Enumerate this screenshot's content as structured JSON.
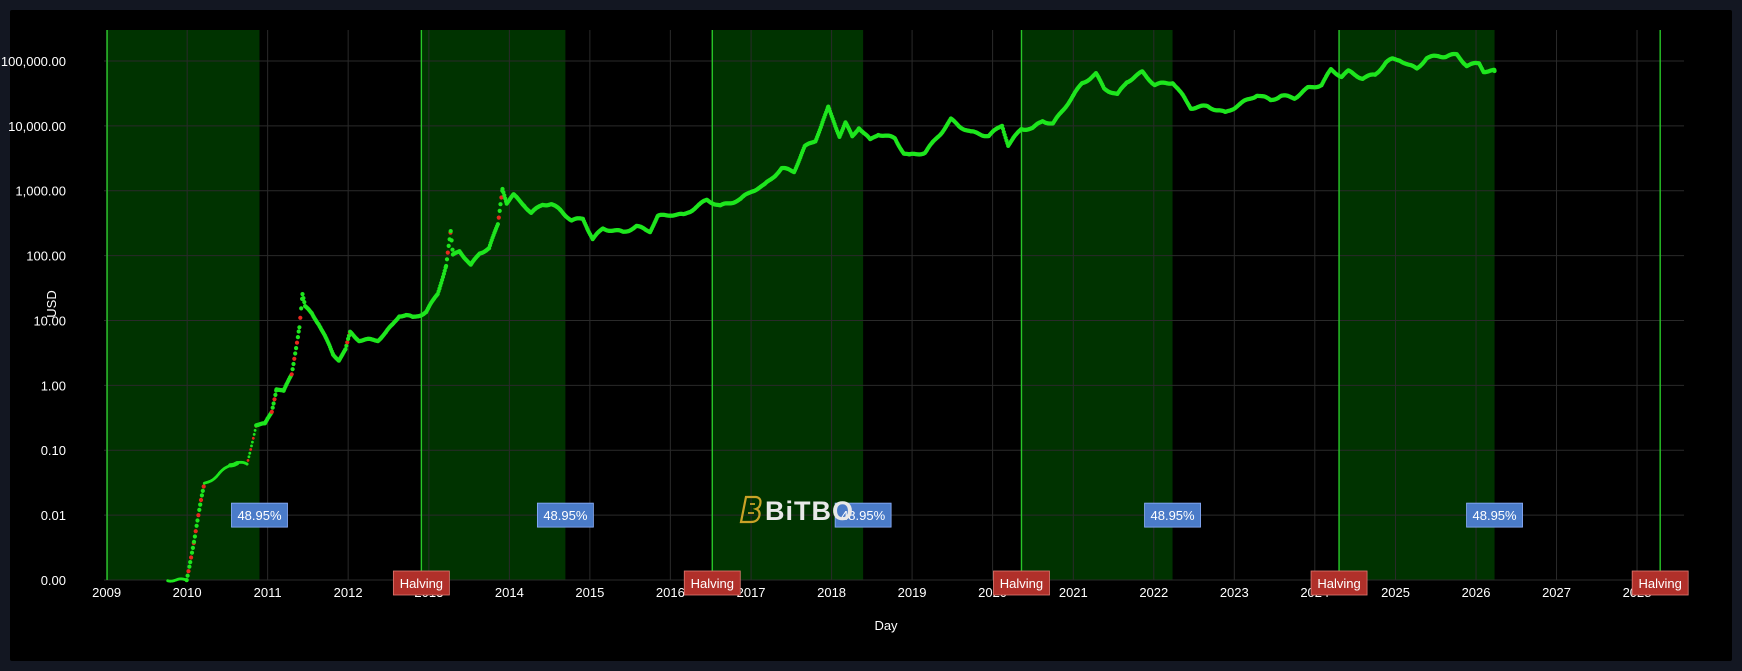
{
  "colors": {
    "background": "#000000",
    "frame": "#131722",
    "grid": "#2a2a2a",
    "band": "#003300",
    "band_edge": "#28c828",
    "up": "#1ee61e",
    "down": "#e6281e",
    "pct_box": "#4a7bc8",
    "halving_box": "#b0302a"
  },
  "logo": {
    "text": "BiTBO",
    "icon": "bitbo-b-icon"
  },
  "chart_data": {
    "type": "scatter",
    "xlabel": "Day",
    "ylabel": "USD",
    "y_scale": "log",
    "ylim": [
      0.001,
      300000
    ],
    "xlim": [
      "2008-12-20",
      "2028-08-01"
    ],
    "x_ticks": [
      "2009",
      "2010",
      "2011",
      "2012",
      "2013",
      "2014",
      "2015",
      "2016",
      "2017",
      "2018",
      "2019",
      "2020",
      "2021",
      "2022",
      "2023",
      "2024",
      "2025",
      "2026",
      "2027",
      "2028"
    ],
    "y_ticks": [
      {
        "value": 100000,
        "label": "100,000.00"
      },
      {
        "value": 10000,
        "label": "10,000.00"
      },
      {
        "value": 1000,
        "label": "1,000.00"
      },
      {
        "value": 100,
        "label": "100.00"
      },
      {
        "value": 10,
        "label": "10.00"
      },
      {
        "value": 1,
        "label": "1.00"
      },
      {
        "value": 0.1,
        "label": "0.10"
      },
      {
        "value": 0.01,
        "label": "0.01"
      },
      {
        "value": 0.001,
        "label": "0.00"
      }
    ],
    "shaded_periods": [
      {
        "start": "2009-01-03",
        "end": "2010-11-25",
        "label": "48.95%"
      },
      {
        "start": "2012-11-28",
        "end": "2014-09-12",
        "label": "48.95%"
      },
      {
        "start": "2016-07-09",
        "end": "2018-05-24",
        "label": "48.95%"
      },
      {
        "start": "2020-05-11",
        "end": "2022-03-27",
        "label": "48.95%"
      },
      {
        "start": "2024-04-20",
        "end": "2026-03-26",
        "label": "48.95%"
      }
    ],
    "halvings": [
      {
        "date": "2012-11-28",
        "label": "Halving"
      },
      {
        "date": "2016-07-09",
        "label": "Halving"
      },
      {
        "date": "2020-05-11",
        "label": "Halving"
      },
      {
        "date": "2024-04-20",
        "label": "Halving"
      },
      {
        "date": "2028-04-15",
        "label": "Halving"
      }
    ],
    "series": [
      {
        "color_rule": "green = normal, red = overheated",
        "points": [
          [
            "2009-10-05",
            0.001
          ],
          [
            "2009-12-30",
            0.001
          ],
          [
            "2010-02-01",
            0.004
          ],
          [
            "2010-03-01",
            0.014
          ],
          [
            "2010-03-20",
            0.03
          ],
          [
            "2010-05-15",
            0.04
          ],
          [
            "2010-07-15",
            0.06
          ],
          [
            "2010-08-20",
            0.065
          ],
          [
            "2010-09-30",
            0.06
          ],
          [
            "2010-11-10",
            0.25
          ],
          [
            "2010-12-20",
            0.25
          ],
          [
            "2011-01-20",
            0.4
          ],
          [
            "2011-02-10",
            0.9
          ],
          [
            "2011-03-15",
            0.8
          ],
          [
            "2011-04-20",
            1.5
          ],
          [
            "2011-05-25",
            8
          ],
          [
            "2011-06-08",
            25
          ],
          [
            "2011-06-20",
            16
          ],
          [
            "2011-07-20",
            13
          ],
          [
            "2011-08-20",
            9
          ],
          [
            "2011-09-25",
            5
          ],
          [
            "2011-10-25",
            3
          ],
          [
            "2011-11-20",
            2.5
          ],
          [
            "2011-12-20",
            3.5
          ],
          [
            "2012-01-10",
            6.5
          ],
          [
            "2012-02-20",
            5
          ],
          [
            "2012-04-01",
            5
          ],
          [
            "2012-05-15",
            5
          ],
          [
            "2012-06-20",
            6.5
          ],
          [
            "2012-07-20",
            8.5
          ],
          [
            "2012-08-20",
            12
          ],
          [
            "2012-09-20",
            12
          ],
          [
            "2012-10-20",
            11
          ],
          [
            "2012-12-20",
            13.5
          ],
          [
            "2013-02-10",
            26
          ],
          [
            "2013-03-20",
            70
          ],
          [
            "2013-04-10",
            230
          ],
          [
            "2013-04-20",
            100
          ],
          [
            "2013-05-20",
            120
          ],
          [
            "2013-07-10",
            70
          ],
          [
            "2013-08-20",
            110
          ],
          [
            "2013-10-01",
            130
          ],
          [
            "2013-11-10",
            300
          ],
          [
            "2013-12-01",
            1100
          ],
          [
            "2013-12-20",
            650
          ],
          [
            "2014-01-20",
            850
          ],
          [
            "2014-03-10",
            600
          ],
          [
            "2014-04-10",
            450
          ],
          [
            "2014-06-01",
            620
          ],
          [
            "2014-07-10",
            620
          ],
          [
            "2014-08-20",
            500
          ],
          [
            "2014-10-10",
            350
          ],
          [
            "2014-12-01",
            370
          ],
          [
            "2015-01-14",
            180
          ],
          [
            "2015-03-01",
            260
          ],
          [
            "2015-06-01",
            230
          ],
          [
            "2015-08-01",
            280
          ],
          [
            "2015-10-01",
            240
          ],
          [
            "2015-11-05",
            400
          ],
          [
            "2016-01-01",
            430
          ],
          [
            "2016-03-01",
            420
          ],
          [
            "2016-06-15",
            720
          ],
          [
            "2016-08-15",
            580
          ],
          [
            "2016-11-15",
            740
          ],
          [
            "2017-01-05",
            1000
          ],
          [
            "2017-03-01",
            1200
          ],
          [
            "2017-05-20",
            2200
          ],
          [
            "2017-07-15",
            2000
          ],
          [
            "2017-09-01",
            4700
          ],
          [
            "2017-10-20",
            6000
          ],
          [
            "2017-12-17",
            19000
          ],
          [
            "2018-02-06",
            7000
          ],
          [
            "2018-03-05",
            11000
          ],
          [
            "2018-04-05",
            6800
          ],
          [
            "2018-05-05",
            9500
          ],
          [
            "2018-06-25",
            6000
          ],
          [
            "2018-08-01",
            7500
          ],
          [
            "2018-10-15",
            6400
          ],
          [
            "2018-11-25",
            3800
          ],
          [
            "2018-12-20",
            3500
          ],
          [
            "2019-03-01",
            3900
          ],
          [
            "2019-05-15",
            8000
          ],
          [
            "2019-06-26",
            12500
          ],
          [
            "2019-08-01",
            10000
          ],
          [
            "2019-09-25",
            8000
          ],
          [
            "2019-12-15",
            7000
          ],
          [
            "2020-02-13",
            10300
          ],
          [
            "2020-03-12",
            5000
          ],
          [
            "2020-05-10",
            9000
          ],
          [
            "2020-07-01",
            9100
          ],
          [
            "2020-08-15",
            12000
          ],
          [
            "2020-10-01",
            10700
          ],
          [
            "2020-11-20",
            18500
          ],
          [
            "2020-12-31",
            29000
          ],
          [
            "2021-02-10",
            45000
          ],
          [
            "2021-04-14",
            63000
          ],
          [
            "2021-05-20",
            38000
          ],
          [
            "2021-07-20",
            30000
          ],
          [
            "2021-09-01",
            48000
          ],
          [
            "2021-11-10",
            67000
          ],
          [
            "2022-01-05",
            43000
          ],
          [
            "2022-03-28",
            47000
          ],
          [
            "2022-05-12",
            29000
          ],
          [
            "2022-06-18",
            19000
          ],
          [
            "2022-09-01",
            20000
          ],
          [
            "2022-11-21",
            15800
          ],
          [
            "2023-01-20",
            21000
          ],
          [
            "2023-04-14",
            30000
          ],
          [
            "2023-06-15",
            25000
          ],
          [
            "2023-08-01",
            29000
          ],
          [
            "2023-10-01",
            27000
          ],
          [
            "2023-12-01",
            38000
          ],
          [
            "2024-02-01",
            43000
          ],
          [
            "2024-03-14",
            73000
          ],
          [
            "2024-05-01",
            58000
          ],
          [
            "2024-06-01",
            69000
          ],
          [
            "2024-08-05",
            54000
          ],
          [
            "2024-10-01",
            62000
          ],
          [
            "2024-11-20",
            95000
          ],
          [
            "2024-12-17",
            106000
          ],
          [
            "2025-01-20",
            105000
          ],
          [
            "2025-03-01",
            85000
          ],
          [
            "2025-04-08",
            77000
          ],
          [
            "2025-05-22",
            110000
          ],
          [
            "2025-07-14",
            120000
          ],
          [
            "2025-08-15",
            118000
          ],
          [
            "2025-10-06",
            125000
          ],
          [
            "2025-11-20",
            85000
          ],
          [
            "2026-01-15",
            92000
          ],
          [
            "2026-02-05",
            70000
          ],
          [
            "2026-03-26",
            70000
          ]
        ]
      }
    ]
  }
}
